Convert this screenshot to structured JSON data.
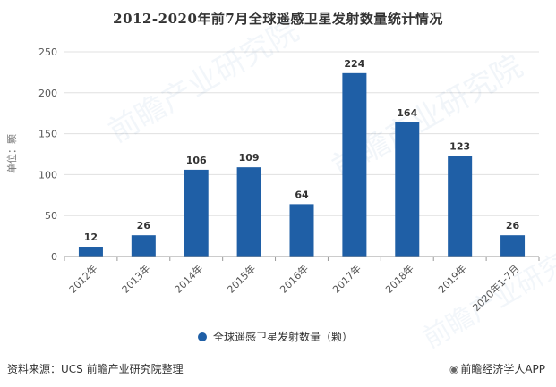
{
  "title": "2012-2020年前7月全球遥感卫星发射数量统计情况",
  "footer": {
    "source": "资料来源：UCS 前瞻产业研究院整理",
    "brand": "前瞻经济学人APP"
  },
  "watermark_text": "前瞻产业研究院",
  "colors": {
    "bar": "#1f5fa6",
    "axis": "#999999",
    "grid": "#e0e0e0",
    "text": "#555555"
  },
  "chart_data": {
    "type": "bar",
    "categories": [
      "2012年",
      "2013年",
      "2014年",
      "2015年",
      "2016年",
      "2017年",
      "2018年",
      "2019年",
      "2020年1-7月"
    ],
    "series": [
      {
        "name": "全球遥感卫星发射数量（颗）",
        "values": [
          12,
          26,
          106,
          109,
          64,
          224,
          164,
          123,
          26
        ]
      }
    ],
    "title": "2012-2020年前7月全球遥感卫星发射数量统计情况",
    "xlabel": "",
    "ylabel": "单位：颗",
    "ylim": [
      0,
      250
    ],
    "yticks": [
      0,
      50,
      100,
      150,
      200,
      250
    ],
    "grid": true,
    "legend": "bottom-center",
    "data_labels": true
  }
}
